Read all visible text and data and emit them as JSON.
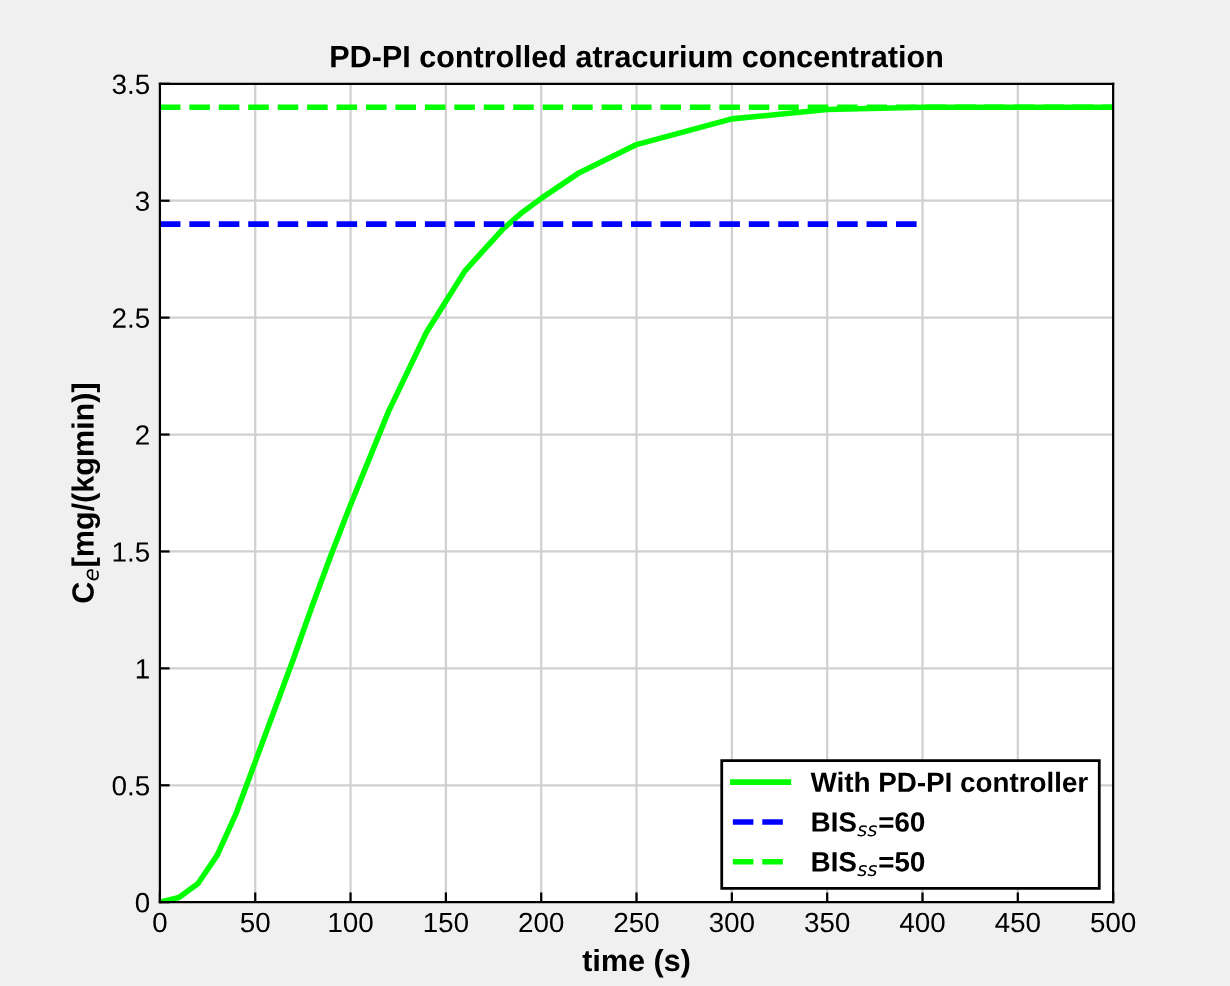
{
  "chart_data": {
    "type": "line",
    "title": "PD-PI controlled atracurium concentration",
    "xlabel": "time (s)",
    "ylabel": "C$_{e}$[mg/(kgmin)]",
    "xlim": [
      0,
      500
    ],
    "ylim": [
      0,
      3.5
    ],
    "xticks": [
      0,
      50,
      100,
      150,
      200,
      250,
      300,
      350,
      400,
      450,
      500
    ],
    "yticks": [
      0,
      0.5,
      1,
      1.5,
      2,
      2.5,
      3,
      3.5
    ],
    "grid": true,
    "legend": "bottom right",
    "series": [
      {
        "name": "With PD-PI controller",
        "color": "#00ff00",
        "line_style": "solid",
        "x": [
          0,
          10,
          20,
          30,
          40,
          50,
          60,
          70,
          80,
          90,
          100,
          120,
          140,
          160,
          180,
          190,
          200,
          220,
          250,
          300,
          350,
          400,
          450,
          500
        ],
        "values": [
          0,
          0.02,
          0.08,
          0.2,
          0.38,
          0.6,
          0.82,
          1.04,
          1.27,
          1.49,
          1.7,
          2.1,
          2.44,
          2.7,
          2.88,
          2.95,
          3.01,
          3.12,
          3.24,
          3.35,
          3.39,
          3.4,
          3.4,
          3.4
        ]
      },
      {
        "name": "BIS$_{ss}$=60",
        "color": "#0000ff",
        "line_style": "dashed",
        "x": [
          0,
          400
        ],
        "values": [
          2.9,
          2.9
        ]
      },
      {
        "name": "BIS$_{ss}$=50",
        "color": "#00ff00",
        "line_style": "dashed",
        "x": [
          0,
          500
        ],
        "values": [
          3.4,
          3.4
        ]
      }
    ]
  }
}
